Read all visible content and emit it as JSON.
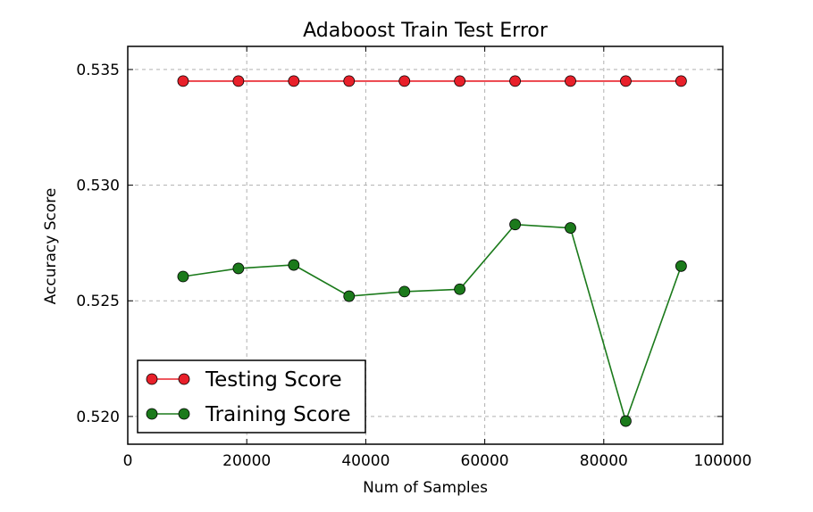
{
  "chart_data": {
    "type": "line",
    "title": "Adaboost Train Test Error",
    "xlabel": "Num of Samples",
    "ylabel": "Accuracy Score",
    "xlim": [
      0,
      100000
    ],
    "ylim": [
      0.5188,
      0.536
    ],
    "x_ticks": [
      0,
      20000,
      40000,
      60000,
      80000,
      100000
    ],
    "x_tick_labels": [
      "0",
      "20000",
      "40000",
      "60000",
      "80000",
      "100000"
    ],
    "y_ticks": [
      0.52,
      0.525,
      0.53,
      0.535
    ],
    "y_tick_labels": [
      "0.520",
      "0.525",
      "0.530",
      "0.535"
    ],
    "grid": true,
    "legend_position": "lower-left",
    "x": [
      9300,
      18600,
      27900,
      37200,
      46500,
      55800,
      65100,
      74400,
      83700,
      93000
    ],
    "series": [
      {
        "name": "Testing Score",
        "color": "#e8202a",
        "marker": "circle",
        "values": [
          0.5345,
          0.5345,
          0.5345,
          0.5345,
          0.5345,
          0.5345,
          0.5345,
          0.5345,
          0.5345,
          0.5345
        ]
      },
      {
        "name": "Training Score",
        "color": "#1b7a1b",
        "marker": "circle",
        "values": [
          0.52605,
          0.5264,
          0.52655,
          0.5252,
          0.5254,
          0.5255,
          0.5283,
          0.52815,
          0.5198,
          0.5265
        ]
      }
    ]
  }
}
